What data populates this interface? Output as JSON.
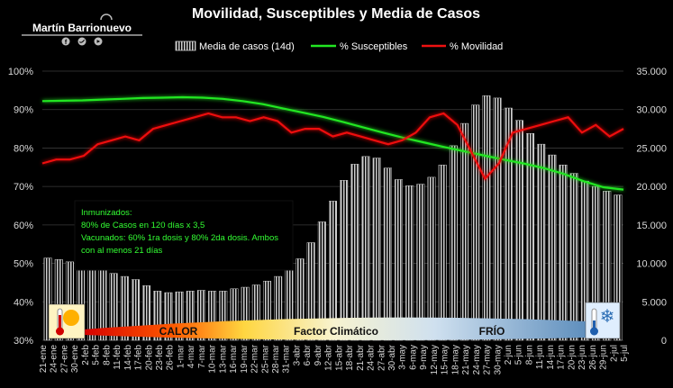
{
  "brand": {
    "name": "Martín Barrionuevo",
    "social_icons": [
      "facebook-icon",
      "twitter-icon",
      "youtube-icon"
    ]
  },
  "chart_data": {
    "type": "bar+line",
    "title": "Movilidad, Susceptibles y Media de Casos",
    "legend": [
      "Media de casos (14d)",
      "% Susceptibles",
      "% Movilidad"
    ],
    "legend_position": "top",
    "y_left": {
      "ticks": [
        "100%",
        "90%",
        "80%",
        "70%",
        "60%",
        "50%",
        "40%",
        "30%"
      ],
      "range": [
        30,
        100
      ]
    },
    "y_right": {
      "ticks": [
        "35.000",
        "30.000",
        "25.000",
        "20.000",
        "15.000",
        "10.000",
        "5.000",
        "0"
      ],
      "range": [
        0,
        35000
      ]
    },
    "x_labels": [
      "21-ene",
      "24-ene",
      "27-ene",
      "30-ene",
      "2-feb",
      "5-feb",
      "8-feb",
      "11-feb",
      "14-feb",
      "17-feb",
      "20-feb",
      "23-feb",
      "26-feb",
      "1-mar",
      "4-mar",
      "7-mar",
      "10-mar",
      "13-mar",
      "16-mar",
      "19-mar",
      "22-mar",
      "25-mar",
      "28-mar",
      "31-mar",
      "3-abr",
      "6-abr",
      "9-abr",
      "12-abr",
      "15-abr",
      "18-abr",
      "21-abr",
      "24-abr",
      "27-abr",
      "30-abr",
      "3-may",
      "6-may",
      "9-may",
      "12-may",
      "15-may",
      "18-may",
      "21-may",
      "24-may",
      "27-may",
      "30-may",
      "2-jun",
      "5-jun",
      "8-jun",
      "11-jun",
      "14-jun",
      "17-jun",
      "20-jun",
      "23-jun",
      "26-jun",
      "29-jun",
      "2-jul",
      "5-jul"
    ],
    "series": [
      {
        "name": "Media de casos (14d)",
        "type": "bar",
        "axis": "right",
        "color": "#c8c8c8",
        "values": [
          10700,
          10500,
          10200,
          9800,
          9400,
          9100,
          8700,
          8300,
          7900,
          7100,
          6400,
          6200,
          6300,
          6400,
          6500,
          6400,
          6400,
          6700,
          6900,
          7200,
          7700,
          8300,
          9200,
          10600,
          12700,
          15400,
          18100,
          20800,
          22900,
          23900,
          23700,
          22400,
          20900,
          20100,
          20300,
          21200,
          22800,
          25300,
          28200,
          30600,
          31800,
          31500,
          30200,
          28600,
          26900,
          25500,
          24100,
          22800,
          21700,
          20700,
          20000,
          19400,
          18900
        ]
      },
      {
        "name": "% Susceptibles",
        "type": "line",
        "axis": "left",
        "color": "#22e622",
        "values": [
          92.2,
          92.3,
          92.4,
          92.6,
          92.8,
          93.0,
          93.1,
          93.2,
          93.1,
          92.8,
          92.2,
          91.4,
          90.3,
          89.2,
          88.1,
          86.8,
          85.4,
          84.0,
          82.7,
          81.5,
          80.3,
          79.2,
          78.1,
          77.0,
          76.0,
          74.8,
          73.3,
          71.4,
          69.8,
          69.2
        ]
      },
      {
        "name": "% Movilidad",
        "type": "line",
        "axis": "left",
        "color": "#ee1111",
        "values": [
          76,
          77,
          77,
          78,
          81,
          82,
          83,
          82,
          85,
          86,
          87,
          88,
          89,
          88,
          88,
          87,
          88,
          87,
          84,
          85,
          85,
          83,
          84,
          83,
          82,
          81,
          82,
          84,
          88,
          89,
          86,
          79,
          72,
          76,
          84,
          85,
          86,
          87,
          88,
          84,
          86,
          83,
          85
        ]
      }
    ],
    "annotation": {
      "lines": [
        "Inmunizados:",
        "80% de Casos en 120 días x 3,5",
        "Vacunados: 60% 1ra dosis y 80% 2da dosis. Ambos",
        "con al menos 21 días"
      ]
    },
    "climate_bar": {
      "left": "CALOR",
      "center": "Factor Climático",
      "right": "FRÍO"
    }
  }
}
